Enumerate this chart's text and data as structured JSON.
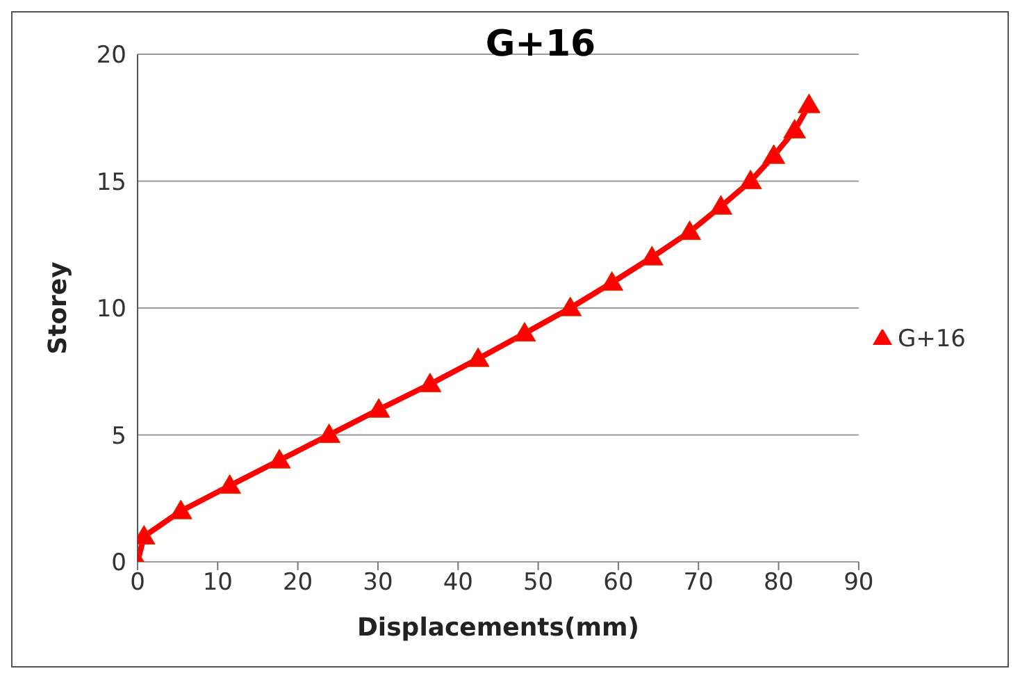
{
  "chart_data": {
    "type": "line",
    "title": "G+16",
    "xlabel": "Displacements(mm)",
    "ylabel": "Storey",
    "x": [
      0,
      0.8,
      5.4,
      11.5,
      17.7,
      23.9,
      30.1,
      36.5,
      42.5,
      48.3,
      54.0,
      59.2,
      64.2,
      68.9,
      72.8,
      76.5,
      79.4,
      82.0,
      83.8
    ],
    "series": [
      {
        "name": "G+16",
        "color": "#ff0000",
        "values": [
          0,
          1,
          2,
          3,
          4,
          5,
          6,
          7,
          8,
          9,
          10,
          11,
          12,
          13,
          14,
          15,
          16,
          17,
          18
        ]
      }
    ],
    "xlim": [
      0,
      90
    ],
    "xticks": [
      0,
      10,
      20,
      30,
      40,
      50,
      60,
      70,
      80,
      90
    ],
    "ylim": [
      0,
      20
    ],
    "yticks": [
      0,
      5,
      10,
      15,
      20
    ],
    "grid": "y",
    "legend": "right",
    "marker": "triangle",
    "line_style": "solid"
  }
}
